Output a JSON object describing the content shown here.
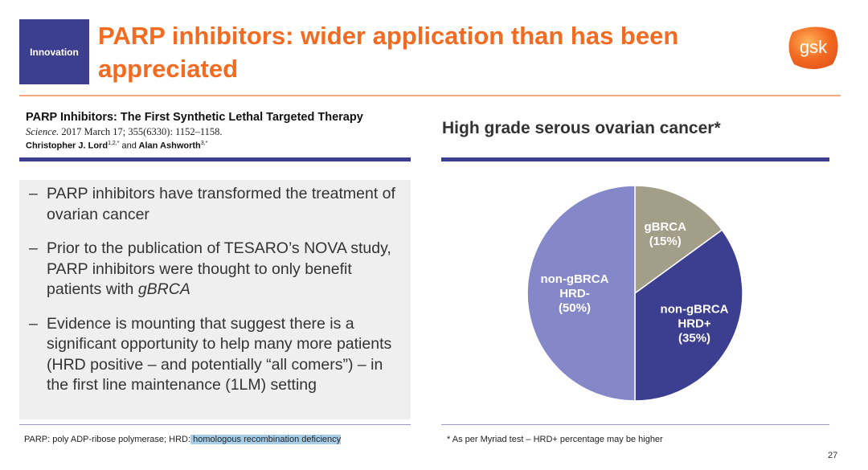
{
  "header": {
    "tag": "Innovation",
    "title": "PARP inhibitors: wider application than has been appreciated",
    "logo_text": "gsk"
  },
  "paper": {
    "title": "PARP Inhibitors: The First Synthetic Lethal Targeted Therapy",
    "journal": "Science.",
    "citation": "2017 March 17; 355(6330): 1152–1158.",
    "author1": "Christopher J. Lord",
    "author1_sup": "1,2,*",
    "and": "and",
    "author2": "Alan Ashworth",
    "author2_sup": "3,*"
  },
  "bullets": {
    "dash": "–",
    "b1": "PARP inhibitors have transformed the treatment of ovarian cancer",
    "b2_a": "Prior to the publication of TESARO’s NOVA study, PARP inhibitors were thought to only benefit patients with ",
    "b2_b": "gBRCA",
    "b3": "Evidence is mounting that suggest there is a significant opportunity to help many more patients (HRD positive – and potentially “all comers”) – in the first line maintenance (1LM) setting"
  },
  "chart_section": {
    "title": "High grade serous ovarian cancer*"
  },
  "chart_data": {
    "type": "pie",
    "slices": [
      {
        "label_lines": [
          "gBRCA",
          "(15%)"
        ],
        "value": 15,
        "color": "#a39e87"
      },
      {
        "label_lines": [
          "non-gBRCA",
          "HRD+",
          "(35%)"
        ],
        "value": 35,
        "color": "#3c3f8f"
      },
      {
        "label_lines": [
          "non-gBRCA",
          "HRD-",
          "(50%)"
        ],
        "value": 50,
        "color": "#8488c8"
      }
    ]
  },
  "footer": {
    "left_a": "PARP: poly ADP-ribose polymerase; HRD:",
    "left_hl": " homologous recombination deficiency",
    "right": "* As per Myriad test – HRD+ percentage may be higher",
    "page": "27"
  },
  "colors": {
    "accent_orange": "#f26b21",
    "navy": "#3c3f8f",
    "highlight": "#a9cfe8"
  }
}
